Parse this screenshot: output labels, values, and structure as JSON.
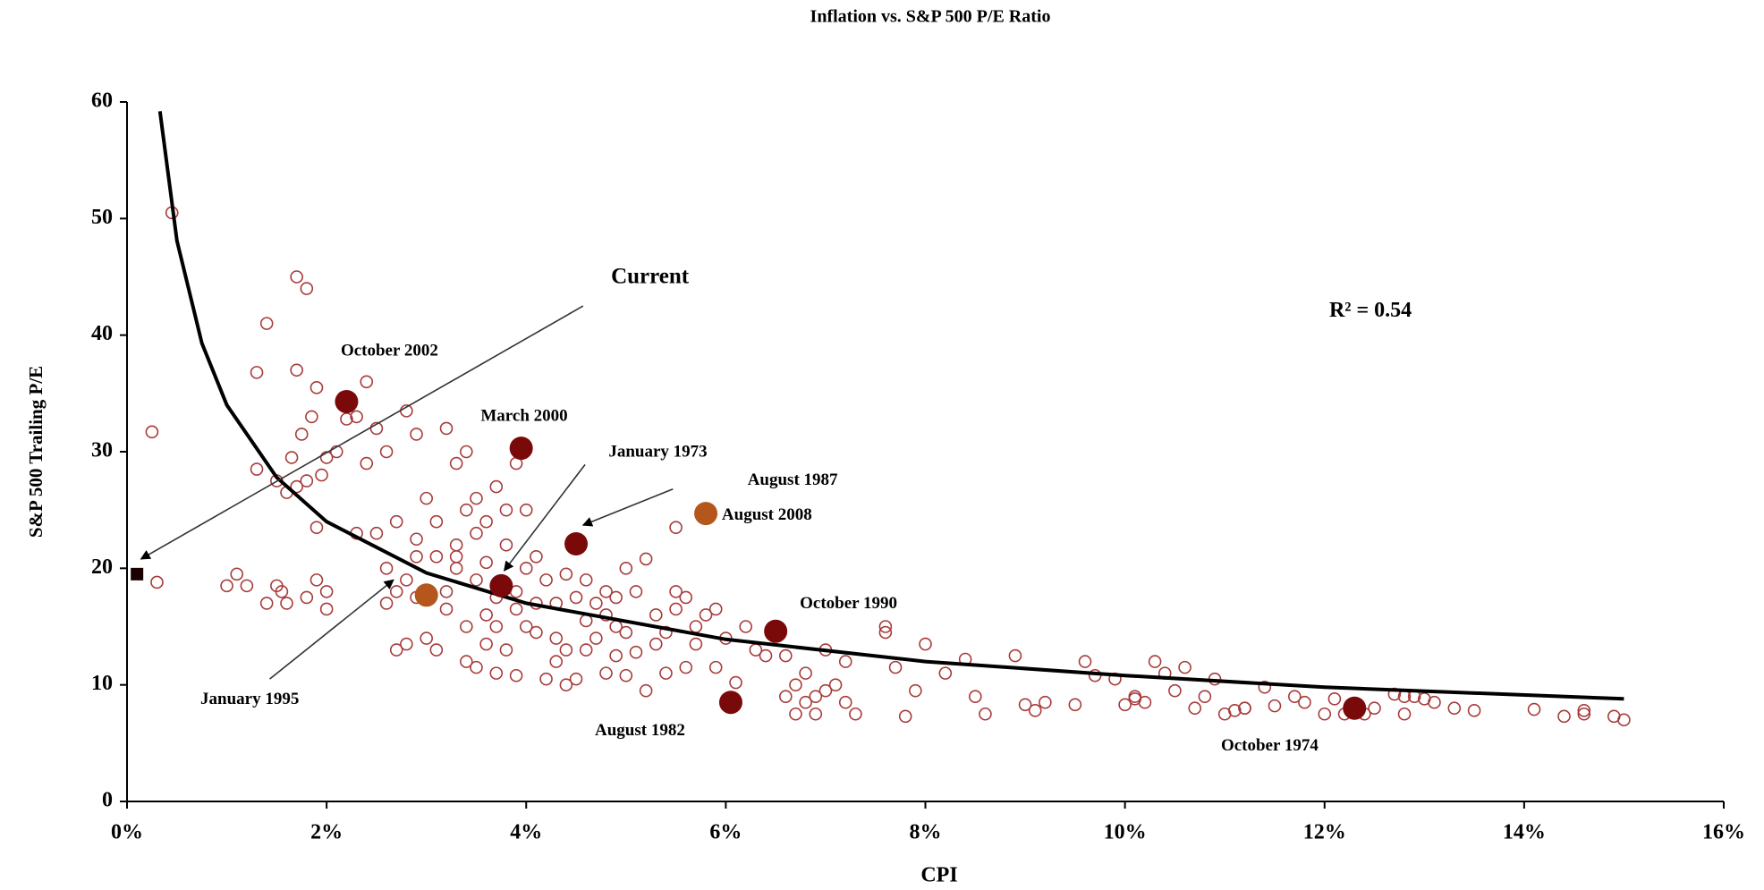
{
  "chart_data": {
    "type": "scatter",
    "title": "Inflation vs. S&P 500 P/E Ratio",
    "xlabel": "CPI",
    "ylabel": "S&P 500 Trailing P/E",
    "annotation": "R² = 0.54",
    "xlim": [
      0,
      16
    ],
    "ylim": [
      0,
      60
    ],
    "xticks": [
      {
        "value": 0,
        "label": "0%"
      },
      {
        "value": 2,
        "label": "2%"
      },
      {
        "value": 4,
        "label": "4%"
      },
      {
        "value": 6,
        "label": "6%"
      },
      {
        "value": 8,
        "label": "8%"
      },
      {
        "value": 10,
        "label": "10%"
      },
      {
        "value": 12,
        "label": "12%"
      },
      {
        "value": 14,
        "label": "14%"
      },
      {
        "value": 16,
        "label": "16%"
      }
    ],
    "yticks": [
      0,
      10,
      20,
      30,
      40,
      50,
      60
    ],
    "color": "#a83a3a",
    "x": [
      0.45,
      0.25,
      0.3,
      1.0,
      1.1,
      1.2,
      1.3,
      1.4,
      1.5,
      1.6,
      1.7,
      1.8,
      1.9,
      2.0,
      1.7,
      1.85,
      1.7,
      1.75,
      1.65,
      1.9,
      1.3,
      1.5,
      1.6,
      1.8,
      1.9,
      2.0,
      2.1,
      2.2,
      1.95,
      1.55,
      1.4,
      1.8,
      2.0,
      2.3,
      2.4,
      2.5,
      2.6,
      2.7,
      2.8,
      2.9,
      2.3,
      2.4,
      2.5,
      2.6,
      2.7,
      2.8,
      2.9,
      3.0,
      3.1,
      3.2,
      3.3,
      3.4,
      3.5,
      3.6,
      3.7,
      3.8,
      3.9,
      4.0,
      3.3,
      3.4,
      2.6,
      2.7,
      2.8,
      2.9,
      3.0,
      3.1,
      3.2,
      3.3,
      3.4,
      3.5,
      3.6,
      3.7,
      3.8,
      3.9,
      4.0,
      4.1,
      4.2,
      4.3,
      4.4,
      4.5,
      3.5,
      3.6,
      3.7,
      3.8,
      3.9,
      4.0,
      4.1,
      4.2,
      4.3,
      4.4,
      2.9,
      3.1,
      3.3,
      3.5,
      3.7,
      3.9,
      4.1,
      3.2,
      3.4,
      3.6,
      4.6,
      4.7,
      4.8,
      4.9,
      5.0,
      5.1,
      5.2,
      5.3,
      5.4,
      5.5,
      4.6,
      4.7,
      4.8,
      4.9,
      5.0,
      5.1,
      5.2,
      5.3,
      5.4,
      5.5,
      5.6,
      5.7,
      5.8,
      5.9,
      6.0,
      6.1,
      6.2,
      6.3,
      6.4,
      5.6,
      5.5,
      5.7,
      5.9,
      4.4,
      4.6,
      4.8,
      5.0,
      4.3,
      4.5,
      4.9,
      6.6,
      6.7,
      6.8,
      6.9,
      7.0,
      7.1,
      7.2,
      7.3,
      6.7,
      6.9,
      7.0,
      7.6,
      7.6,
      7.7,
      7.8,
      7.9,
      8.0,
      8.2,
      8.5,
      8.6,
      6.6,
      6.8,
      7.2,
      8.4,
      8.9,
      9.0,
      9.1,
      9.2,
      9.5,
      9.6,
      9.7,
      9.9,
      10.0,
      10.1,
      10.2,
      10.3,
      10.4,
      10.5,
      10.6,
      10.7,
      10.8,
      10.9,
      11.0,
      11.1,
      11.2,
      11.4,
      11.5,
      11.7,
      11.8,
      12.0,
      12.1,
      12.2,
      12.4,
      12.5,
      12.7,
      12.8,
      12.9,
      13.0,
      13.1,
      13.3,
      13.5,
      14.1,
      14.4,
      14.6,
      14.9,
      15.0,
      10.1,
      11.2,
      12.8,
      14.6
    ],
    "values": [
      50.5,
      31.7,
      18.8,
      18.5,
      19.5,
      18.5,
      36.8,
      41,
      18.5,
      17,
      45,
      44,
      19,
      16.5,
      37,
      33,
      27,
      31.5,
      29.5,
      35.5,
      28.5,
      27.5,
      26.5,
      27.5,
      23.5,
      29.5,
      30,
      32.8,
      28,
      18,
      17,
      17.5,
      18,
      33,
      36,
      32,
      30,
      24,
      33.5,
      31.5,
      23,
      29,
      23,
      17,
      18,
      19,
      22.5,
      26,
      24,
      32,
      29,
      30,
      26,
      24,
      27,
      25,
      29,
      25,
      22,
      25,
      20,
      13,
      13.5,
      17.5,
      14,
      13,
      18,
      20,
      12,
      11.5,
      13.5,
      11,
      13,
      10.8,
      15,
      14.5,
      10.5,
      12,
      10,
      10.5,
      19,
      20.5,
      17.5,
      22,
      18,
      20,
      21,
      19,
      17,
      19.5,
      21,
      21,
      21,
      23,
      15,
      16.5,
      17,
      16.5,
      15,
      16,
      19,
      17,
      18,
      17.5,
      20,
      18,
      20.8,
      16,
      14.5,
      18,
      13,
      14,
      11,
      12.5,
      14.5,
      12.8,
      9.5,
      13.5,
      11,
      16.5,
      17.5,
      15,
      16,
      16.5,
      14,
      10.2,
      15,
      13,
      12.5,
      11.5,
      23.5,
      13.5,
      11.5,
      13,
      15.5,
      16,
      10.8,
      14,
      17.5,
      15,
      9,
      7.5,
      8.5,
      7.5,
      9.5,
      10,
      8.5,
      7.5,
      10,
      9,
      13,
      15,
      14.5,
      11.5,
      7.3,
      9.5,
      13.5,
      11,
      9,
      7.5,
      12.5,
      11,
      12,
      12.2,
      12.5,
      8.3,
      7.8,
      8.5,
      8.3,
      12,
      10.8,
      10.5,
      8.3,
      9.0,
      8.5,
      12,
      11,
      9.5,
      11.5,
      8,
      9,
      10.5,
      7.5,
      7.8,
      8.0,
      9.8,
      8.2,
      9,
      8.5,
      7.5,
      8.8,
      7.5,
      7.5,
      8,
      9.2,
      7.5,
      9,
      8.8,
      8.5,
      8,
      7.8,
      7.9,
      7.3,
      7.8,
      7.3,
      7,
      8.8,
      8,
      9,
      7.5
    ],
    "trend": {
      "x": [
        0.33,
        0.5,
        0.75,
        1,
        1.5,
        2,
        3,
        4,
        6,
        8,
        10,
        12,
        15
      ],
      "values": [
        59.2,
        48.1,
        39.3,
        34,
        27.8,
        24,
        19.6,
        17,
        13.9,
        12,
        10.8,
        9.8,
        8.8
      ],
      "color": "#000000"
    },
    "highlights": [
      {
        "label": "Current",
        "x": 0.1,
        "y": 19.5,
        "color": "#1a0000",
        "marker": "square"
      },
      {
        "label": "October 2002",
        "x": 2.2,
        "y": 34.3,
        "color": "#7a0a0a"
      },
      {
        "label": "March 2000",
        "x": 3.95,
        "y": 30.3,
        "color": "#7a0a0a"
      },
      {
        "label": "January 1973",
        "x": 3.75,
        "y": 18.5,
        "color": "#7a0a0a"
      },
      {
        "label": "August 1987",
        "x": 4.5,
        "y": 22.1,
        "color": "#7a0a0a"
      },
      {
        "label": "August 2008",
        "x": 5.8,
        "y": 24.7,
        "color": "#b5561c"
      },
      {
        "label": "January 1995",
        "x": 3.0,
        "y": 17.7,
        "color": "#b5561c"
      },
      {
        "label": "October 1990",
        "x": 6.5,
        "y": 14.6,
        "color": "#7a0a0a"
      },
      {
        "label": "August 1982",
        "x": 6.05,
        "y": 8.5,
        "color": "#7a0a0a"
      },
      {
        "label": "October 1974",
        "x": 12.3,
        "y": 8.0,
        "color": "#7a0a0a"
      }
    ]
  }
}
